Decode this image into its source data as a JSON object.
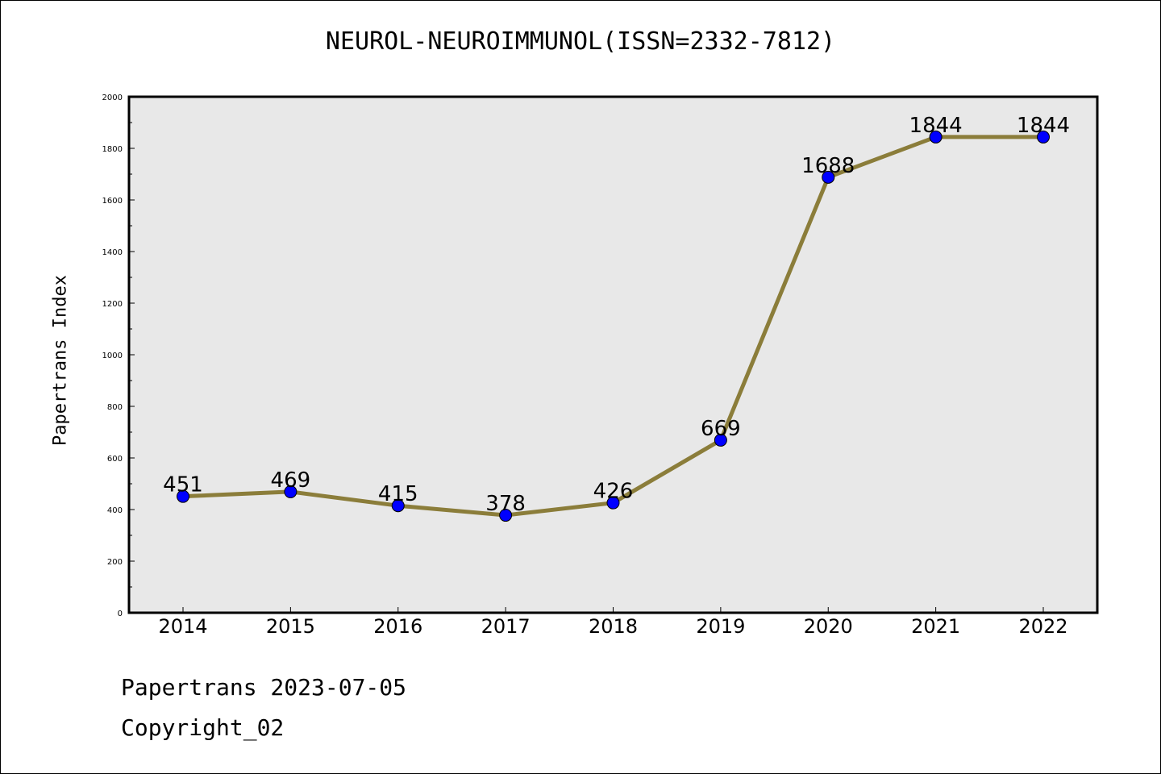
{
  "chart_data": {
    "type": "line",
    "title": "NEUROL-NEUROIMMUNOL(ISSN=2332-7812)",
    "ylabel": "Papertrans Index",
    "xlabel": "",
    "x": [
      "2014",
      "2015",
      "2016",
      "2017",
      "2018",
      "2019",
      "2020",
      "2021",
      "2022"
    ],
    "series": [
      {
        "values": [
          451,
          469,
          415,
          378,
          426,
          669,
          1688,
          1844,
          1844
        ]
      }
    ],
    "ylim": [
      0,
      2000
    ],
    "yticks": [
      0,
      200,
      400,
      600,
      800,
      1000,
      1200,
      1400,
      1600,
      1800,
      2000
    ],
    "grid": false,
    "line_color": "#8b7d3a",
    "marker_color": "#0000ff",
    "plot_background": "#e8e8e8"
  },
  "footer": {
    "line1": "Papertrans 2023-07-05",
    "line2": "Copyright_02"
  }
}
